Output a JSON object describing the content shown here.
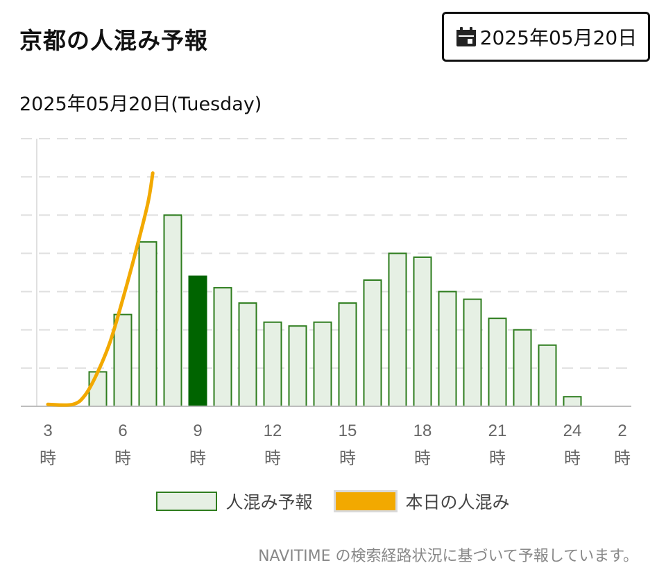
{
  "header": {
    "title": "京都の人混み予報",
    "date_button_label": "2025年05月20日",
    "date_button_icon": "calendar-icon"
  },
  "subtitle": "2025年05月20日(Tuesday)",
  "legend": {
    "forecast_label": "人混み予報",
    "today_label": "本日の人混み"
  },
  "footnote": "NAVITIME の検索経路状況に基づいて予報しています。",
  "colors": {
    "bar_fill": "#e6f0e4",
    "bar_stroke": "#2e7d1e",
    "bar_current": "#006400",
    "today_line": "#f2a900",
    "grid": "#e0e0e0",
    "axis": "#bdbdbd"
  },
  "chart_data": {
    "type": "bar",
    "title": "",
    "xlabel": "",
    "ylabel": "",
    "ylim": [
      0,
      7
    ],
    "grid": true,
    "legend_position": "bottom",
    "tick_labels": [
      {
        "hour": 3,
        "label": "3",
        "suffix": "時"
      },
      {
        "hour": 6,
        "label": "6",
        "suffix": "時"
      },
      {
        "hour": 9,
        "label": "9",
        "suffix": "時"
      },
      {
        "hour": 12,
        "label": "12",
        "suffix": "時"
      },
      {
        "hour": 15,
        "label": "15",
        "suffix": "時"
      },
      {
        "hour": 18,
        "label": "18",
        "suffix": "時"
      },
      {
        "hour": 21,
        "label": "21",
        "suffix": "時"
      },
      {
        "hour": 24,
        "label": "24",
        "suffix": "時"
      },
      {
        "hour": 26,
        "label": "2",
        "suffix": "時"
      }
    ],
    "x_range": [
      3,
      26
    ],
    "series": [
      {
        "name": "人混み予報",
        "kind": "bar",
        "hours": [
          3,
          4,
          5,
          6,
          7,
          8,
          9,
          10,
          11,
          12,
          13,
          14,
          15,
          16,
          17,
          18,
          19,
          20,
          21,
          22,
          23,
          24,
          25,
          26
        ],
        "values": [
          0,
          0,
          0.9,
          2.4,
          4.3,
          5.0,
          3.4,
          3.1,
          2.7,
          2.2,
          2.1,
          2.2,
          2.7,
          3.3,
          4.0,
          3.9,
          3.0,
          2.8,
          2.3,
          2.0,
          1.6,
          0.25,
          0,
          0
        ],
        "current_hour": 9
      },
      {
        "name": "本日の人混み",
        "kind": "line",
        "hours": [
          3,
          4,
          4.5,
          5,
          5.5,
          6,
          6.5,
          7,
          7.2
        ],
        "values": [
          0.05,
          0.05,
          0.3,
          0.9,
          1.7,
          2.8,
          4.0,
          5.3,
          6.1
        ]
      }
    ]
  }
}
